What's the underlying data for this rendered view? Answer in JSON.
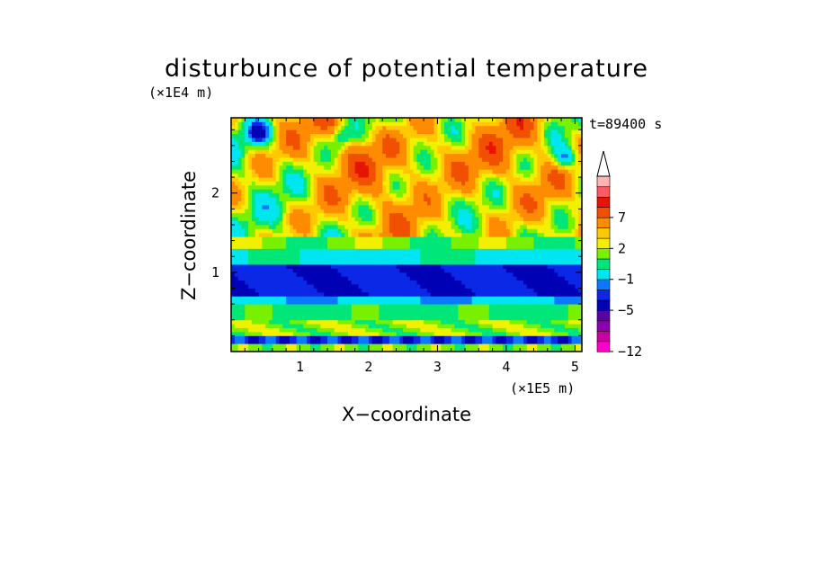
{
  "chart_data": {
    "type": "heatmap",
    "title": "disturbunce of potential temperature",
    "xlabel": "X−coordinate",
    "ylabel": "Z−coordinate",
    "x_unit": "(×1E5 m)",
    "y_unit": "(×1E4 m)",
    "time_label": "t=89400 s",
    "xlim": [
      0.0,
      5.1
    ],
    "ylim": [
      0.0,
      2.95
    ],
    "x_ticks": [
      1,
      2,
      3,
      4,
      5
    ],
    "y_ticks": [
      1,
      2
    ],
    "x_tick_labels": [
      "1",
      "2",
      "3",
      "4",
      "5"
    ],
    "y_tick_labels": [
      "1",
      "2"
    ],
    "colorbar": {
      "levels": [
        -12,
        -11,
        -9,
        -7,
        -5,
        -4,
        -3,
        -1,
        0,
        1,
        2,
        3,
        5,
        7,
        9,
        11
      ],
      "colors": [
        "#ff00c8",
        "#c800a0",
        "#8c00b4",
        "#5a00a0",
        "#0000b4",
        "#0a28e6",
        "#0a78ff",
        "#00e6f0",
        "#00e678",
        "#78f000",
        "#f0f000",
        "#ffc800",
        "#ff8c00",
        "#f05000",
        "#e61400",
        "#ff5a64",
        "#ffb4b4"
      ],
      "tick_labels": [
        "−12",
        "−5",
        "−1",
        "2",
        "7"
      ],
      "extend": "max"
    }
  }
}
